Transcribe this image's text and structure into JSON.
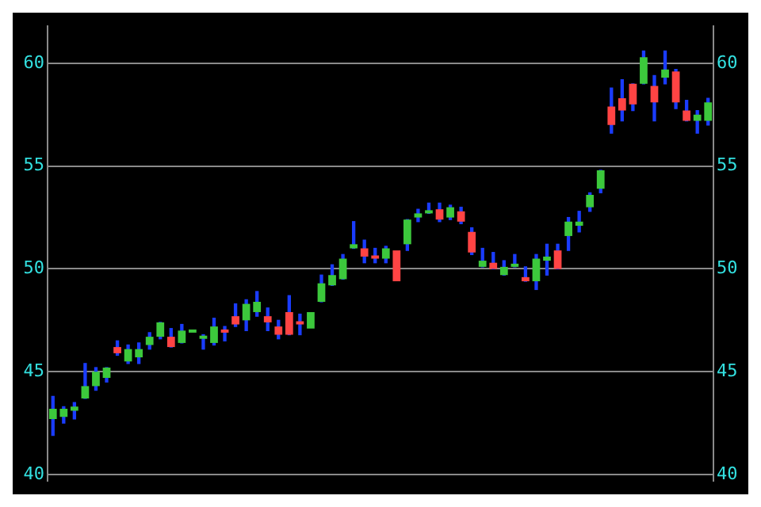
{
  "chart_data": {
    "type": "candlestick",
    "categories": [
      null,
      null,
      null,
      null,
      null,
      null,
      null,
      null,
      null,
      null,
      null,
      null,
      null,
      null,
      null,
      null,
      null,
      null,
      null,
      null,
      null,
      null,
      null,
      null,
      null,
      null,
      null,
      null,
      null,
      null,
      null,
      null,
      null,
      null,
      null,
      null,
      null,
      null,
      null,
      null,
      null,
      null,
      null,
      null,
      null,
      null,
      null,
      null,
      null,
      null,
      null,
      null,
      null,
      null,
      null,
      null,
      null,
      null,
      null,
      null,
      null,
      null
    ],
    "ohlc": [
      [
        42.7,
        43.8,
        41.9,
        43.2
      ],
      [
        42.8,
        43.3,
        42.5,
        43.2
      ],
      [
        43.1,
        43.5,
        42.7,
        43.3
      ],
      [
        43.7,
        45.4,
        43.7,
        44.3
      ],
      [
        44.3,
        45.2,
        44.1,
        45.0
      ],
      [
        44.7,
        45.2,
        44.5,
        45.2
      ],
      [
        46.2,
        46.5,
        45.8,
        45.9
      ],
      [
        45.5,
        46.3,
        45.4,
        46.1
      ],
      [
        45.7,
        46.4,
        45.4,
        46.1
      ],
      [
        46.3,
        46.9,
        46.1,
        46.7
      ],
      [
        46.7,
        47.4,
        46.6,
        47.4
      ],
      [
        46.7,
        47.1,
        46.2,
        46.2
      ],
      [
        46.4,
        47.3,
        46.4,
        47.0
      ],
      [
        46.9,
        47.0,
        46.9,
        47.0
      ],
      [
        46.6,
        46.8,
        46.1,
        46.7
      ],
      [
        46.4,
        47.6,
        46.3,
        47.2
      ],
      [
        47.0,
        47.2,
        46.5,
        46.9
      ],
      [
        47.7,
        48.3,
        47.2,
        47.3
      ],
      [
        47.5,
        48.5,
        47.0,
        48.3
      ],
      [
        47.9,
        48.9,
        47.7,
        48.4
      ],
      [
        47.7,
        48.1,
        47.0,
        47.4
      ],
      [
        47.2,
        47.5,
        46.6,
        46.8
      ],
      [
        47.9,
        48.7,
        46.8,
        46.8
      ],
      [
        47.4,
        47.8,
        46.8,
        47.3
      ],
      [
        47.1,
        47.9,
        47.1,
        47.9
      ],
      [
        48.4,
        49.7,
        48.4,
        49.3
      ],
      [
        49.2,
        50.2,
        49.2,
        49.7
      ],
      [
        49.5,
        50.7,
        49.5,
        50.5
      ],
      [
        51.0,
        52.3,
        51.0,
        51.2
      ],
      [
        51.0,
        51.4,
        50.3,
        50.6
      ],
      [
        50.6,
        51.0,
        50.3,
        50.5
      ],
      [
        50.5,
        51.1,
        50.3,
        51.0
      ],
      [
        50.9,
        50.9,
        49.4,
        49.4
      ],
      [
        51.2,
        52.4,
        50.9,
        52.4
      ],
      [
        52.5,
        52.9,
        52.3,
        52.7
      ],
      [
        52.7,
        53.2,
        52.7,
        52.8
      ],
      [
        52.9,
        53.2,
        52.3,
        52.4
      ],
      [
        52.5,
        53.1,
        52.4,
        53.0
      ],
      [
        52.8,
        53.0,
        52.2,
        52.3
      ],
      [
        51.8,
        52.0,
        50.7,
        50.8
      ],
      [
        50.1,
        51.0,
        50.1,
        50.4
      ],
      [
        50.3,
        50.8,
        50.0,
        50.0
      ],
      [
        49.7,
        50.4,
        49.7,
        50.1
      ],
      [
        50.1,
        50.7,
        50.1,
        50.2
      ],
      [
        49.6,
        50.1,
        49.4,
        49.4
      ],
      [
        49.4,
        50.7,
        49.0,
        50.5
      ],
      [
        50.4,
        51.2,
        49.7,
        50.6
      ],
      [
        50.9,
        51.2,
        50.0,
        50.0
      ],
      [
        51.6,
        52.5,
        50.9,
        52.3
      ],
      [
        52.1,
        52.8,
        51.8,
        52.3
      ],
      [
        53.0,
        53.7,
        52.8,
        53.6
      ],
      [
        53.9,
        54.8,
        53.7,
        54.8
      ],
      [
        57.9,
        58.8,
        56.6,
        57.0
      ],
      [
        58.3,
        59.2,
        57.2,
        57.7
      ],
      [
        59.0,
        59.0,
        57.7,
        58.0
      ],
      [
        59.0,
        60.6,
        59.0,
        60.3
      ],
      [
        58.9,
        59.4,
        57.2,
        58.1
      ],
      [
        59.3,
        60.6,
        59.0,
        59.7
      ],
      [
        59.6,
        59.7,
        57.8,
        58.1
      ],
      [
        57.7,
        58.2,
        57.2,
        57.2
      ],
      [
        57.2,
        57.7,
        56.6,
        57.5
      ],
      [
        57.2,
        58.3,
        57.0,
        58.1
      ]
    ],
    "colors": [
      "#3cc83c",
      "#3cc83c",
      "#3cc83c",
      "#3cc83c",
      "#3cc83c",
      "#3cc83c",
      "#ff4444",
      "#3cc83c",
      "#3cc83c",
      "#3cc83c",
      "#3cc83c",
      "#ff4444",
      "#3cc83c",
      "#3cc83c",
      "#3cc83c",
      "#3cc83c",
      "#ff4444",
      "#ff4444",
      "#3cc83c",
      "#3cc83c",
      "#ff4444",
      "#ff4444",
      "#ff4444",
      "#ff4444",
      "#3cc83c",
      "#3cc83c",
      "#3cc83c",
      "#3cc83c",
      "#3cc83c",
      "#ff4444",
      "#ff4444",
      "#3cc83c",
      "#ff4444",
      "#3cc83c",
      "#3cc83c",
      "#3cc83c",
      "#ff4444",
      "#3cc83c",
      "#ff4444",
      "#ff4444",
      "#3cc83c",
      "#ff4444",
      "#3cc83c",
      "#3cc83c",
      "#ff4444",
      "#3cc83c",
      "#3cc83c",
      "#ff4444",
      "#3cc83c",
      "#3cc83c",
      "#3cc83c",
      "#3cc83c",
      "#ff4444",
      "#ff4444",
      "#ff4444",
      "#3cc83c",
      "#ff4444",
      "#3cc83c",
      "#ff4444",
      "#ff4444",
      "#3cc83c",
      "#3cc83c"
    ],
    "ylim": [
      39.7,
      61.8
    ],
    "yticks": [
      40,
      45,
      50,
      55,
      60
    ],
    "y2lim": [
      39.7,
      61.8
    ],
    "y2ticks": [
      40,
      45,
      50,
      55,
      60
    ],
    "grid": "y",
    "tick_labels": "y",
    "legend": false
  }
}
